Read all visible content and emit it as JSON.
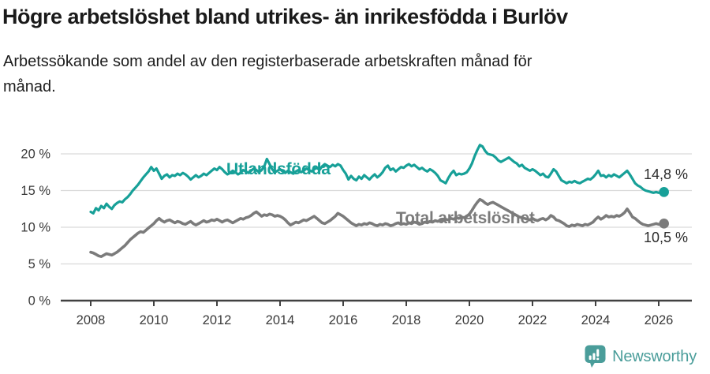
{
  "header": {
    "title": "Högre arbetslöshet bland utrikes- än inrikesfödda i Burlöv",
    "subtitle": "Arbetssökande som andel av den registerbaserade arbetskraften månad för månad."
  },
  "chart_data": {
    "type": "line",
    "unit": "%",
    "x_start_year": 2008,
    "points_per_year": 12,
    "grid": "horizontal",
    "legend_position": "inline-labels",
    "x_axis": {
      "ticks": [
        2008,
        2010,
        2012,
        2014,
        2016,
        2018,
        2020,
        2022,
        2024,
        2026
      ],
      "range": [
        2007.05,
        2027.05
      ]
    },
    "y_axis": {
      "range": [
        0,
        21.5
      ],
      "ticks": [
        {
          "value": 0,
          "label": "0 %"
        },
        {
          "value": 5,
          "label": "5 %"
        },
        {
          "value": 10,
          "label": "10 %"
        },
        {
          "value": 15,
          "label": "15 %"
        },
        {
          "value": 20,
          "label": "20 %"
        }
      ]
    },
    "series": [
      {
        "name": "Utlandsfödda",
        "color": "#17a098",
        "end_label": "14,8 %",
        "end_value": 14.8,
        "values": [
          12.1,
          11.9,
          12.6,
          12.3,
          12.9,
          12.6,
          13.2,
          12.8,
          12.5,
          13.0,
          13.3,
          13.5,
          13.4,
          13.8,
          14.1,
          14.5,
          15.0,
          15.4,
          15.8,
          16.3,
          16.8,
          17.2,
          17.6,
          18.2,
          17.7,
          18.0,
          17.3,
          16.6,
          17.0,
          17.2,
          16.8,
          17.1,
          17.0,
          17.3,
          17.1,
          17.4,
          17.2,
          16.9,
          16.5,
          16.8,
          17.1,
          16.8,
          17.0,
          17.3,
          17.1,
          17.4,
          17.7,
          18.0,
          17.8,
          18.2,
          17.9,
          17.5,
          17.2,
          17.4,
          17.7,
          17.5,
          17.2,
          17.4,
          17.8,
          17.6,
          17.4,
          17.7,
          18.0,
          17.8,
          17.5,
          17.8,
          18.3,
          19.3,
          18.6,
          17.9,
          17.5,
          17.7,
          17.9,
          17.6,
          17.4,
          17.7,
          17.5,
          17.3,
          17.6,
          17.8,
          17.5,
          17.7,
          18.0,
          17.8,
          17.6,
          17.9,
          18.1,
          17.8,
          18.3,
          18.6,
          18.4,
          18.2,
          18.5,
          18.3,
          18.6,
          18.4,
          17.8,
          17.3,
          16.5,
          17.0,
          16.6,
          16.4,
          16.9,
          16.6,
          17.1,
          16.8,
          16.5,
          16.9,
          17.2,
          16.8,
          17.1,
          17.5,
          18.1,
          18.4,
          17.8,
          18.0,
          17.6,
          17.9,
          18.2,
          18.1,
          18.4,
          18.6,
          18.3,
          18.5,
          18.2,
          17.9,
          18.1,
          17.8,
          17.6,
          17.9,
          17.7,
          17.4,
          17.0,
          16.4,
          16.2,
          16.0,
          16.7,
          17.3,
          17.7,
          17.1,
          17.3,
          17.2,
          17.3,
          17.5,
          18.0,
          18.7,
          19.7,
          20.5,
          21.2,
          21.0,
          20.4,
          20.0,
          19.9,
          19.8,
          19.5,
          19.1,
          18.9,
          19.1,
          19.3,
          19.5,
          19.2,
          18.9,
          18.7,
          18.3,
          18.5,
          18.1,
          17.9,
          17.7,
          17.9,
          17.7,
          17.4,
          17.1,
          17.3,
          16.9,
          16.8,
          17.3,
          17.9,
          17.6,
          17.0,
          16.4,
          16.2,
          16.0,
          16.2,
          16.1,
          16.3,
          16.1,
          16.0,
          16.2,
          16.4,
          16.6,
          16.5,
          16.8,
          17.2,
          17.7,
          17.0,
          17.1,
          16.8,
          17.1,
          16.9,
          17.2,
          17.0,
          16.8,
          17.1,
          17.4,
          17.7,
          17.2,
          16.6,
          16.0,
          15.7,
          15.5,
          15.2,
          15.0,
          14.9,
          14.8,
          14.7,
          14.8,
          14.7,
          14.8,
          14.8
        ]
      },
      {
        "name": "Total arbetslöshet",
        "color": "#7b7b7b",
        "end_label": "10,5 %",
        "end_value": 10.5,
        "values": [
          6.6,
          6.5,
          6.3,
          6.1,
          6.0,
          6.2,
          6.4,
          6.3,
          6.2,
          6.4,
          6.6,
          6.9,
          7.2,
          7.5,
          7.9,
          8.3,
          8.6,
          8.9,
          9.2,
          9.4,
          9.3,
          9.6,
          9.9,
          10.2,
          10.5,
          10.9,
          11.2,
          10.9,
          10.7,
          10.9,
          11.0,
          10.8,
          10.6,
          10.8,
          10.7,
          10.5,
          10.4,
          10.6,
          10.8,
          10.5,
          10.3,
          10.5,
          10.7,
          10.9,
          10.7,
          10.8,
          11.0,
          10.9,
          11.1,
          10.9,
          10.7,
          10.9,
          11.0,
          10.8,
          10.6,
          10.8,
          11.0,
          11.2,
          11.1,
          11.3,
          11.4,
          11.6,
          11.9,
          12.1,
          11.8,
          11.5,
          11.7,
          11.6,
          11.8,
          11.7,
          11.5,
          11.6,
          11.5,
          11.3,
          11.0,
          10.6,
          10.3,
          10.5,
          10.7,
          10.6,
          10.8,
          11.0,
          10.9,
          11.1,
          11.3,
          11.5,
          11.2,
          10.9,
          10.6,
          10.5,
          10.7,
          10.9,
          11.2,
          11.5,
          11.9,
          11.7,
          11.5,
          11.2,
          10.9,
          10.6,
          10.4,
          10.2,
          10.4,
          10.3,
          10.5,
          10.4,
          10.6,
          10.5,
          10.3,
          10.2,
          10.4,
          10.3,
          10.5,
          10.4,
          10.2,
          10.3,
          10.5,
          10.6,
          10.4,
          10.5,
          10.4,
          10.6,
          10.5,
          10.7,
          10.6,
          10.4,
          10.5,
          10.7,
          10.6,
          10.8,
          10.7,
          10.9,
          10.8,
          11.0,
          10.9,
          11.1,
          11.0,
          11.2,
          11.1,
          11.3,
          11.2,
          11.4,
          11.3,
          11.5,
          11.8,
          12.3,
          12.9,
          13.4,
          13.8,
          13.6,
          13.3,
          13.1,
          13.3,
          13.4,
          13.2,
          13.0,
          12.8,
          12.6,
          12.4,
          12.2,
          12.0,
          11.8,
          11.6,
          11.4,
          11.3,
          11.2,
          11.1,
          11.0,
          11.2,
          11.0,
          10.9,
          11.1,
          11.2,
          11.0,
          11.2,
          11.6,
          11.4,
          11.0,
          10.9,
          10.7,
          10.5,
          10.2,
          10.1,
          10.3,
          10.2,
          10.4,
          10.3,
          10.2,
          10.4,
          10.3,
          10.5,
          10.7,
          11.1,
          11.4,
          11.1,
          11.3,
          11.6,
          11.4,
          11.5,
          11.4,
          11.6,
          11.5,
          11.7,
          12.0,
          12.5,
          12.0,
          11.4,
          11.2,
          10.9,
          10.6,
          10.4,
          10.3,
          10.2,
          10.3,
          10.4,
          10.5,
          10.4,
          10.4,
          10.5
        ]
      }
    ]
  },
  "colors": {
    "axis": "#414141",
    "grid": "#d9d9d9",
    "tick_text": "#3a3a3a",
    "end_label_text": "#2b2b2b"
  },
  "footer": {
    "brand": "Newsworthy",
    "brand_color": "#4a9d9a"
  }
}
